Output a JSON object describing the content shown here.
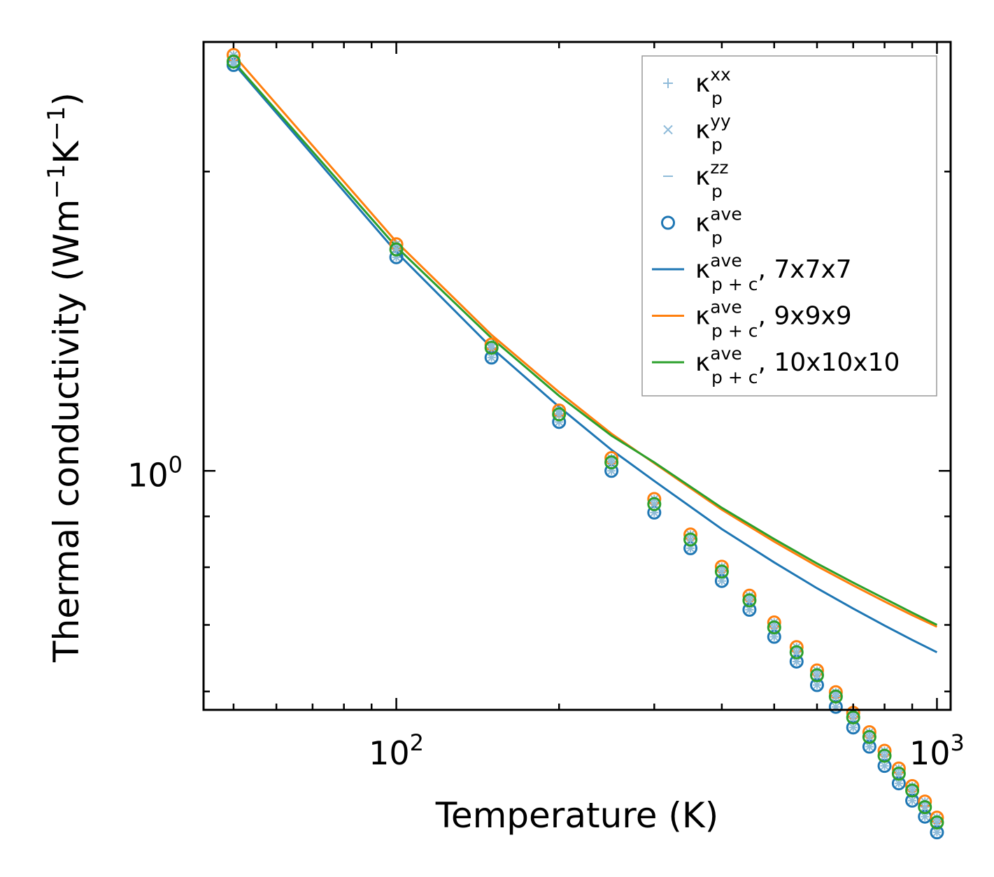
{
  "chart_data": {
    "type": "line",
    "xscale": "log",
    "yscale": "log",
    "xlabel": "Temperature (K)",
    "ylabel": "Thermal conductivity (Wm",
    "ylabel_exp1": "−1",
    "ylabel_mid": "K",
    "ylabel_exp2": "−1",
    "ylabel_end": ")",
    "xlim": [
      44,
      1060
    ],
    "ylim": [
      0.575,
      2.7
    ],
    "x_ticks": [
      {
        "base": "10",
        "exp": "2",
        "value": 100
      },
      {
        "base": "10",
        "exp": "3",
        "value": 1000
      }
    ],
    "y_ticks": [
      {
        "base": "10",
        "exp": "0",
        "value": 1
      }
    ],
    "temperatures": [
      50,
      100,
      150,
      200,
      250,
      300,
      350,
      400,
      450,
      500,
      550,
      600,
      650,
      700,
      750,
      800,
      850,
      900,
      950,
      1000
    ],
    "scatter_series": [
      {
        "name": "7x7x7",
        "color": "#1f77b4",
        "values": [
          2.56,
          1.64,
          1.3,
          1.12,
          1.0,
          0.908,
          0.836,
          0.775,
          0.725,
          0.681,
          0.643,
          0.609,
          0.579,
          0.552,
          0.528,
          0.505,
          0.485,
          0.466,
          0.449,
          0.433
        ]
      },
      {
        "name": "9x9x9",
        "color": "#ff7f0e",
        "values": [
          2.62,
          1.69,
          1.34,
          1.15,
          1.03,
          0.937,
          0.863,
          0.801,
          0.749,
          0.704,
          0.665,
          0.63,
          0.599,
          0.571,
          0.546,
          0.523,
          0.502,
          0.482,
          0.465,
          0.448
        ]
      },
      {
        "name": "10x10x10",
        "color": "#2ca02c",
        "values": [
          2.58,
          1.67,
          1.33,
          1.14,
          1.02,
          0.926,
          0.853,
          0.792,
          0.741,
          0.696,
          0.657,
          0.623,
          0.593,
          0.565,
          0.54,
          0.517,
          0.496,
          0.477,
          0.459,
          0.443
        ]
      }
    ],
    "line_series": [
      {
        "name": "7x7x7",
        "color": "#1f77b4",
        "points": [
          [
            50,
            2.57
          ],
          [
            100,
            1.66
          ],
          [
            150,
            1.33
          ],
          [
            200,
            1.16
          ],
          [
            250,
            1.05
          ],
          [
            300,
            0.977
          ],
          [
            400,
            0.874
          ],
          [
            500,
            0.809
          ],
          [
            600,
            0.762
          ],
          [
            700,
            0.727
          ],
          [
            800,
            0.699
          ],
          [
            900,
            0.676
          ],
          [
            1000,
            0.657
          ]
        ]
      },
      {
        "name": "9x9x9",
        "color": "#ff7f0e",
        "points": [
          [
            50,
            2.62
          ],
          [
            100,
            1.7
          ],
          [
            150,
            1.37
          ],
          [
            200,
            1.2
          ],
          [
            250,
            1.09
          ],
          [
            300,
            1.018
          ],
          [
            400,
            0.914
          ],
          [
            500,
            0.849
          ],
          [
            600,
            0.802
          ],
          [
            700,
            0.767
          ],
          [
            800,
            0.739
          ],
          [
            900,
            0.716
          ],
          [
            1000,
            0.697
          ]
        ]
      },
      {
        "name": "10x10x10",
        "color": "#2ca02c",
        "points": [
          [
            50,
            2.58
          ],
          [
            100,
            1.68
          ],
          [
            150,
            1.36
          ],
          [
            200,
            1.19
          ],
          [
            250,
            1.085
          ],
          [
            300,
            1.02
          ],
          [
            400,
            0.918
          ],
          [
            500,
            0.854
          ],
          [
            600,
            0.807
          ],
          [
            700,
            0.772
          ],
          [
            800,
            0.744
          ],
          [
            900,
            0.72
          ],
          [
            1000,
            0.7
          ]
        ]
      }
    ],
    "legend": {
      "placement": "top-right",
      "entries": [
        {
          "symbol": "plus-marker",
          "color": "#8fbbd9",
          "main": "κ",
          "sup": "xx",
          "sub": "p",
          "suffix": ""
        },
        {
          "symbol": "x-marker",
          "color": "#8fbbd9",
          "main": "κ",
          "sup": "yy",
          "sub": "p",
          "suffix": ""
        },
        {
          "symbol": "dash-marker",
          "color": "#8fbbd9",
          "main": "κ",
          "sup": "zz",
          "sub": "p",
          "suffix": ""
        },
        {
          "symbol": "circle-marker",
          "color": "#1f77b4",
          "main": "κ",
          "sup": "ave",
          "sub": "p",
          "suffix": ""
        },
        {
          "symbol": "line",
          "color": "#1f77b4",
          "main": "κ",
          "sup": "ave",
          "sub": "p + c",
          "suffix": ", 7x7x7"
        },
        {
          "symbol": "line",
          "color": "#ff7f0e",
          "main": "κ",
          "sup": "ave",
          "sub": "p + c",
          "suffix": ", 9x9x9"
        },
        {
          "symbol": "line",
          "color": "#2ca02c",
          "main": "κ",
          "sup": "ave",
          "sub": "p + c",
          "suffix": ", 10x10x10"
        }
      ]
    }
  }
}
